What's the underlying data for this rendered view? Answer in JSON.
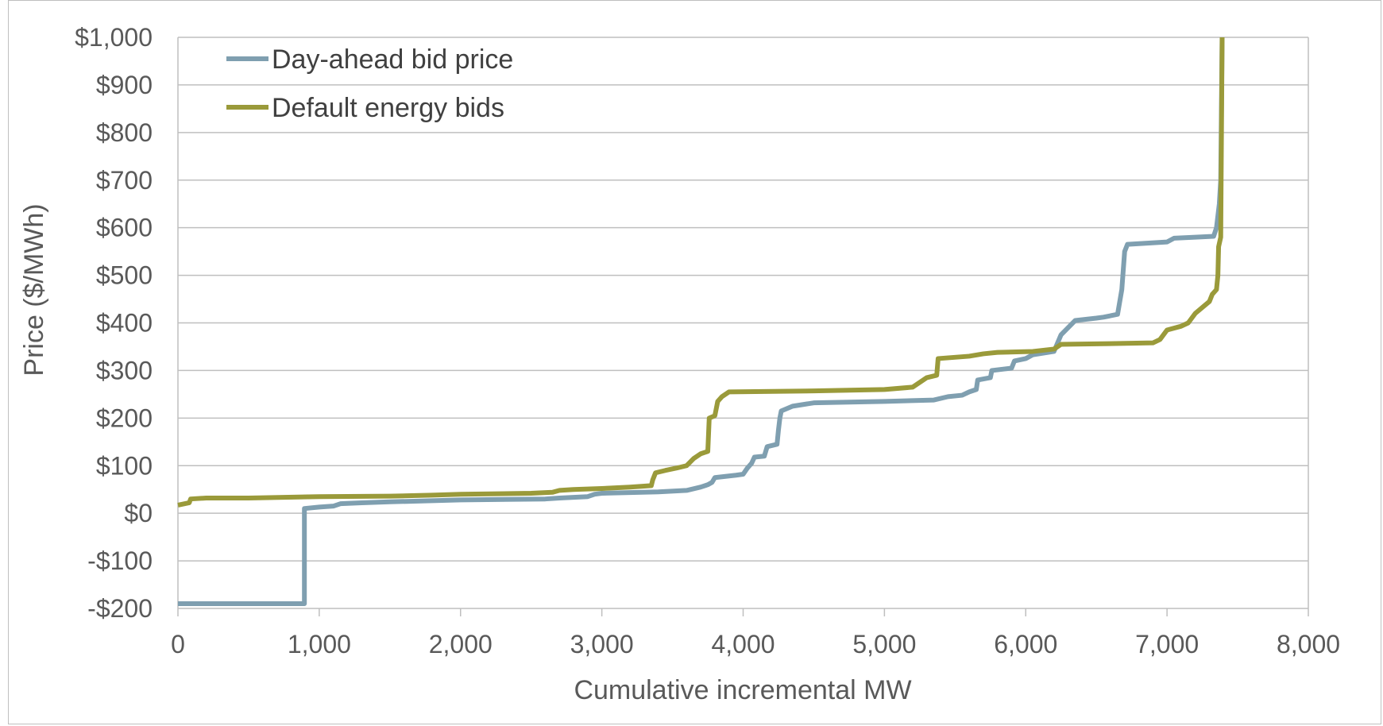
{
  "chart_data": {
    "type": "line",
    "title": "",
    "xlabel": "Cumulative incremental MW",
    "ylabel": "Price ($/MWh)",
    "xlim": [
      0,
      8000
    ],
    "ylim": [
      -200,
      1000
    ],
    "x_ticks": [
      0,
      1000,
      2000,
      3000,
      4000,
      5000,
      6000,
      7000,
      8000
    ],
    "x_tick_labels": [
      "0",
      "1,000",
      "2,000",
      "3,000",
      "4,000",
      "5,000",
      "6,000",
      "7,000",
      "8,000"
    ],
    "y_ticks": [
      1000,
      900,
      800,
      700,
      600,
      500,
      400,
      300,
      200,
      100,
      0,
      -100,
      -200
    ],
    "y_tick_labels": [
      "$1,000",
      "$900",
      "$800",
      "$700",
      "$600",
      "$500",
      "$400",
      "$300",
      "$200",
      "$100",
      "$0",
      "-$100",
      "-$200"
    ],
    "grid": "horizontal",
    "legend_position": "top-left",
    "series": [
      {
        "name": "Day-ahead bid price",
        "color": "#7f9fb0",
        "points": [
          [
            0,
            -190
          ],
          [
            895,
            -190
          ],
          [
            895,
            10
          ],
          [
            1000,
            13
          ],
          [
            1100,
            15
          ],
          [
            1150,
            20
          ],
          [
            1300,
            22
          ],
          [
            1500,
            24
          ],
          [
            2000,
            28
          ],
          [
            2600,
            30
          ],
          [
            2700,
            32
          ],
          [
            2900,
            35
          ],
          [
            2950,
            40
          ],
          [
            3000,
            42
          ],
          [
            3400,
            45
          ],
          [
            3600,
            48
          ],
          [
            3700,
            55
          ],
          [
            3750,
            60
          ],
          [
            3780,
            65
          ],
          [
            3800,
            75
          ],
          [
            3950,
            80
          ],
          [
            4000,
            82
          ],
          [
            4030,
            95
          ],
          [
            4060,
            105
          ],
          [
            4080,
            118
          ],
          [
            4150,
            120
          ],
          [
            4170,
            140
          ],
          [
            4240,
            145
          ],
          [
            4250,
            175
          ],
          [
            4260,
            200
          ],
          [
            4270,
            215
          ],
          [
            4350,
            225
          ],
          [
            4500,
            232
          ],
          [
            5000,
            235
          ],
          [
            5350,
            238
          ],
          [
            5450,
            245
          ],
          [
            5550,
            248
          ],
          [
            5600,
            255
          ],
          [
            5650,
            260
          ],
          [
            5660,
            280
          ],
          [
            5750,
            285
          ],
          [
            5760,
            300
          ],
          [
            5900,
            305
          ],
          [
            5920,
            320
          ],
          [
            6000,
            325
          ],
          [
            6050,
            333
          ],
          [
            6200,
            340
          ],
          [
            6250,
            375
          ],
          [
            6300,
            390
          ],
          [
            6350,
            405
          ],
          [
            6500,
            410
          ],
          [
            6550,
            412
          ],
          [
            6650,
            418
          ],
          [
            6680,
            470
          ],
          [
            6700,
            550
          ],
          [
            6720,
            565
          ],
          [
            7000,
            570
          ],
          [
            7050,
            578
          ],
          [
            7200,
            580
          ],
          [
            7330,
            582
          ],
          [
            7350,
            600
          ],
          [
            7370,
            650
          ],
          [
            7380,
            700
          ],
          [
            7390,
            1000
          ]
        ]
      },
      {
        "name": "Default energy bids",
        "color": "#9a9a3a",
        "points": [
          [
            0,
            17
          ],
          [
            80,
            22
          ],
          [
            90,
            30
          ],
          [
            200,
            32
          ],
          [
            500,
            32
          ],
          [
            1000,
            35
          ],
          [
            1500,
            36
          ],
          [
            1800,
            38
          ],
          [
            2000,
            40
          ],
          [
            2500,
            42
          ],
          [
            2650,
            44
          ],
          [
            2700,
            48
          ],
          [
            2800,
            50
          ],
          [
            3000,
            52
          ],
          [
            3200,
            55
          ],
          [
            3350,
            58
          ],
          [
            3360,
            70
          ],
          [
            3380,
            85
          ],
          [
            3450,
            90
          ],
          [
            3530,
            95
          ],
          [
            3600,
            100
          ],
          [
            3650,
            115
          ],
          [
            3700,
            125
          ],
          [
            3750,
            130
          ],
          [
            3760,
            200
          ],
          [
            3800,
            205
          ],
          [
            3820,
            235
          ],
          [
            3850,
            245
          ],
          [
            3900,
            255
          ],
          [
            4500,
            257
          ],
          [
            5000,
            260
          ],
          [
            5200,
            265
          ],
          [
            5300,
            285
          ],
          [
            5370,
            290
          ],
          [
            5380,
            325
          ],
          [
            5600,
            330
          ],
          [
            5700,
            335
          ],
          [
            5800,
            338
          ],
          [
            6050,
            340
          ],
          [
            6200,
            345
          ],
          [
            6250,
            355
          ],
          [
            6500,
            356
          ],
          [
            6900,
            358
          ],
          [
            6950,
            365
          ],
          [
            7000,
            385
          ],
          [
            7100,
            393
          ],
          [
            7150,
            400
          ],
          [
            7200,
            420
          ],
          [
            7300,
            445
          ],
          [
            7320,
            460
          ],
          [
            7350,
            470
          ],
          [
            7360,
            500
          ],
          [
            7365,
            560
          ],
          [
            7380,
            580
          ],
          [
            7390,
            1000
          ]
        ]
      }
    ]
  }
}
